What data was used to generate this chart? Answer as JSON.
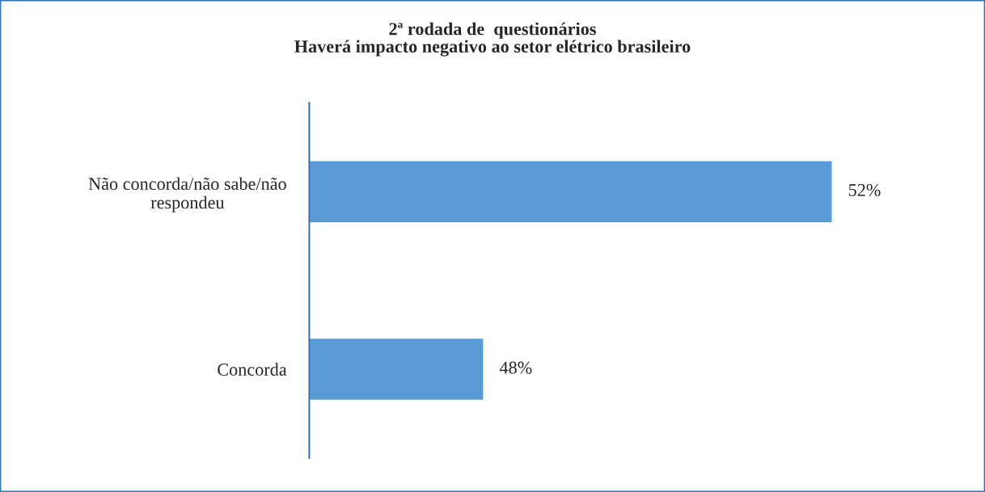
{
  "chart_data": {
    "type": "bar",
    "orientation": "horizontal",
    "title": "2ª rodada de  questionários\nHaverá impacto negativo ao setor elétrico brasileiro",
    "categories": [
      "Não concorda/não sabe/não\nrespondeu",
      "Concorda"
    ],
    "values": [
      52,
      48
    ],
    "value_labels": [
      "52%",
      "48%"
    ],
    "color": "#5b9bd5",
    "xlim": [
      46,
      52
    ],
    "tick_labels": "y",
    "grid": false,
    "legend": false
  }
}
